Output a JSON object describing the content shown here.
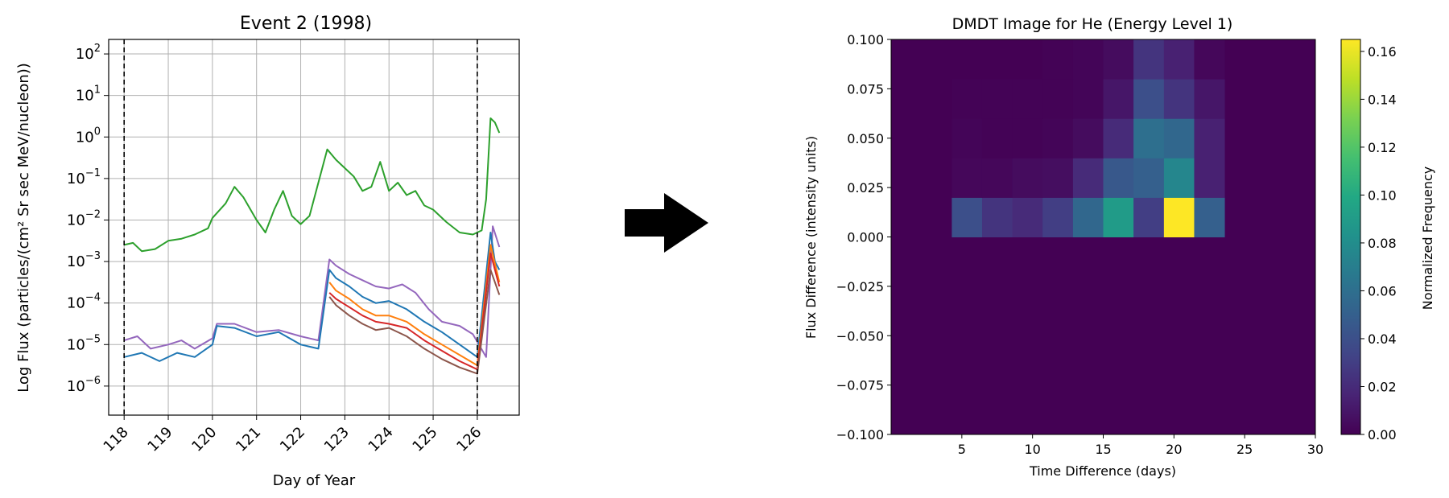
{
  "arrow_color": "#000000",
  "chart_data": [
    {
      "type": "line",
      "title": "Event 2 (1998)",
      "xlabel": "Day of Year",
      "ylabel": "Log Flux (particles/(cm² Sr sec MeV/nucleon))",
      "y_scale": "log",
      "xlim": [
        117.65,
        126.95
      ],
      "ylim_exponent": [
        -6.7,
        2.35
      ],
      "xticks": [
        118,
        119,
        120,
        121,
        122,
        123,
        124,
        125,
        126
      ],
      "yticks": [
        {
          "exp": -6,
          "base": "10",
          "sup": "−6"
        },
        {
          "exp": -5,
          "base": "10",
          "sup": "−5"
        },
        {
          "exp": -4,
          "base": "10",
          "sup": "−4"
        },
        {
          "exp": -3,
          "base": "10",
          "sup": "−3"
        },
        {
          "exp": -2,
          "base": "10",
          "sup": "−2"
        },
        {
          "exp": -1,
          "base": "10",
          "sup": "−1"
        },
        {
          "exp": 0,
          "base": "10",
          "sup": "0"
        },
        {
          "exp": 1,
          "base": "10",
          "sup": "1"
        },
        {
          "exp": 2,
          "base": "10",
          "sup": "2"
        }
      ],
      "grid": true,
      "event_markers_x": [
        118.0,
        126.0
      ],
      "series_colors": [
        "#2ca02c",
        "#1f77b4",
        "#ff7f0e",
        "#d62728",
        "#9467bd",
        "#8c564b"
      ],
      "series": [
        {
          "color": "#2ca02c",
          "x": [
            118.0,
            118.2,
            118.4,
            118.7,
            119.0,
            119.3,
            119.6,
            119.9,
            120.0,
            120.3,
            120.5,
            120.7,
            121.0,
            121.2,
            121.4,
            121.6,
            121.8,
            122.0,
            122.2,
            122.4,
            122.6,
            122.8,
            123.0,
            123.2,
            123.4,
            123.6,
            123.8,
            124.0,
            124.2,
            124.4,
            124.6,
            124.8,
            125.0,
            125.3,
            125.6,
            125.9,
            126.1,
            126.2,
            126.3,
            126.4,
            126.5
          ],
          "log_y": [
            -2.6,
            -2.55,
            -2.75,
            -2.7,
            -2.5,
            -2.45,
            -2.35,
            -2.2,
            -1.95,
            -1.6,
            -1.2,
            -1.45,
            -2.0,
            -2.3,
            -1.75,
            -1.3,
            -1.9,
            -2.1,
            -1.9,
            -1.1,
            -0.3,
            -0.55,
            -0.75,
            -0.95,
            -1.3,
            -1.2,
            -0.6,
            -1.3,
            -1.1,
            -1.4,
            -1.3,
            -1.65,
            -1.75,
            -2.05,
            -2.3,
            -2.35,
            -2.25,
            -1.5,
            0.45,
            0.35,
            0.1
          ]
        },
        {
          "color": "#9467bd",
          "x": [
            118.0,
            118.3,
            118.6,
            119.0,
            119.3,
            119.6,
            120.0,
            120.1,
            120.5,
            121.0,
            121.5,
            122.0,
            122.4,
            122.65,
            122.8,
            123.1,
            123.4,
            123.7,
            124.0,
            124.3,
            124.6,
            124.9,
            125.2,
            125.6,
            125.9,
            126.2,
            126.35,
            126.5
          ],
          "log_y": [
            -4.9,
            -4.8,
            -5.1,
            -5.0,
            -4.9,
            -5.1,
            -4.85,
            -4.5,
            -4.5,
            -4.7,
            -4.65,
            -4.8,
            -4.9,
            -2.95,
            -3.1,
            -3.3,
            -3.45,
            -3.6,
            -3.65,
            -3.55,
            -3.75,
            -4.15,
            -4.45,
            -4.55,
            -4.75,
            -5.3,
            -2.15,
            -2.65
          ]
        },
        {
          "color": "#1f77b4",
          "x": [
            118.0,
            118.4,
            118.8,
            119.2,
            119.6,
            120.0,
            120.1,
            120.5,
            121.0,
            121.5,
            122.0,
            122.4,
            122.65,
            122.8,
            123.1,
            123.4,
            123.7,
            124.0,
            124.4,
            124.8,
            125.2,
            125.6,
            126.0,
            126.3,
            126.4,
            126.5
          ],
          "log_y": [
            -5.3,
            -5.2,
            -5.4,
            -5.2,
            -5.3,
            -5.0,
            -4.55,
            -4.6,
            -4.8,
            -4.7,
            -5.0,
            -5.1,
            -3.2,
            -3.4,
            -3.6,
            -3.85,
            -4.0,
            -3.95,
            -4.15,
            -4.45,
            -4.7,
            -5.0,
            -5.3,
            -2.3,
            -3.0,
            -3.2
          ]
        },
        {
          "color": "#ff7f0e",
          "x": [
            122.65,
            122.8,
            123.1,
            123.4,
            123.7,
            124.0,
            124.4,
            124.8,
            125.2,
            125.6,
            126.0,
            126.3,
            126.5
          ],
          "log_y": [
            -3.5,
            -3.7,
            -3.9,
            -4.15,
            -4.3,
            -4.3,
            -4.45,
            -4.75,
            -5.0,
            -5.25,
            -5.5,
            -2.6,
            -3.5
          ]
        },
        {
          "color": "#d62728",
          "x": [
            122.65,
            122.8,
            123.1,
            123.4,
            123.7,
            124.0,
            124.4,
            124.8,
            125.2,
            125.6,
            126.0,
            126.3,
            126.5
          ],
          "log_y": [
            -3.75,
            -3.9,
            -4.1,
            -4.3,
            -4.45,
            -4.5,
            -4.6,
            -4.9,
            -5.15,
            -5.4,
            -5.6,
            -2.8,
            -3.6
          ]
        },
        {
          "color": "#8c564b",
          "x": [
            122.65,
            122.8,
            123.1,
            123.4,
            123.7,
            124.0,
            124.4,
            124.8,
            125.2,
            125.6,
            126.0,
            126.3,
            126.5
          ],
          "log_y": [
            -3.85,
            -4.05,
            -4.3,
            -4.5,
            -4.65,
            -4.6,
            -4.8,
            -5.1,
            -5.35,
            -5.55,
            -5.7,
            -3.2,
            -3.8
          ]
        }
      ]
    },
    {
      "type": "heatmap",
      "title": "DMDT Image for He (Energy Level 1)",
      "xlabel": "Time Difference (days)",
      "ylabel": "Flux Difference (intensity units)",
      "xlim": [
        0,
        30
      ],
      "ylim": [
        -0.1,
        0.1
      ],
      "xticks": [
        "5",
        "10",
        "15",
        "20",
        "25",
        "30"
      ],
      "yticks": [
        "−0.100",
        "−0.075",
        "−0.050",
        "−0.025",
        "0.000",
        "0.025",
        "0.050",
        "0.075",
        "0.100"
      ],
      "colormap": "viridis",
      "colorbar_label": "Normalized Frequency",
      "colorbar_range": [
        0,
        0.165
      ],
      "colorbar_ticks": [
        "0.00",
        "0.02",
        "0.04",
        "0.06",
        "0.08",
        "0.10",
        "0.12",
        "0.14",
        "0.16"
      ],
      "x_bin_edges": [
        0,
        2.14,
        4.29,
        6.43,
        8.57,
        10.71,
        12.86,
        15.0,
        17.14,
        19.29,
        21.43,
        23.57,
        25.71,
        27.86,
        30.0
      ],
      "y_bin_edges": [
        0.0,
        0.02,
        0.04,
        0.06,
        0.08,
        0.1
      ],
      "values_by_row_bottom_up": [
        [
          0,
          0,
          0.04,
          0.025,
          0.02,
          0.03,
          0.055,
          0.09,
          0.03,
          0.165,
          0.05,
          0,
          0,
          0
        ],
        [
          0,
          0,
          0.003,
          0.003,
          0.005,
          0.006,
          0.02,
          0.045,
          0.05,
          0.075,
          0.015,
          0,
          0,
          0
        ],
        [
          0,
          0,
          0.002,
          0.001,
          0.001,
          0.002,
          0.005,
          0.02,
          0.06,
          0.055,
          0.015,
          0,
          0,
          0
        ],
        [
          0,
          0,
          0.001,
          0.001,
          0.001,
          0.001,
          0.002,
          0.01,
          0.04,
          0.025,
          0.01,
          0,
          0,
          0
        ],
        [
          0,
          0,
          0,
          0,
          0,
          0.001,
          0.002,
          0.005,
          0.025,
          0.015,
          0.003,
          0,
          0,
          0
        ]
      ]
    }
  ]
}
